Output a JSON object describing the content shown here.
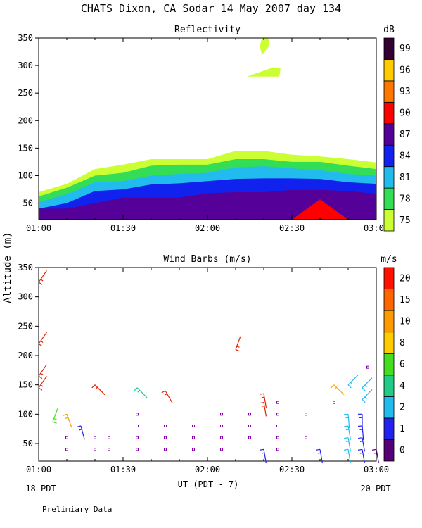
{
  "title": "CHATS Dixon, CA  Sodar  14 May 2007  day 134",
  "footer": {
    "left_start": "18 PDT",
    "right_end": "20 PDT",
    "note": "Prelimiary Data"
  },
  "chart_data": [
    {
      "type": "heatmap",
      "title": "Reflectivity",
      "ylabel": "Altitude (m)",
      "xlabel": "UT  (PDT - 7)",
      "x_domain": [
        "01:00",
        "03:00"
      ],
      "xticks": [
        "01:00",
        "01:30",
        "02:00",
        "02:30",
        "03:00"
      ],
      "ylim": [
        20,
        350
      ],
      "yticks": [
        50,
        100,
        150,
        200,
        250,
        300,
        350
      ],
      "colorbar": {
        "unit": "dB",
        "labels": [
          "75",
          "78",
          "81",
          "84",
          "87",
          "90",
          "93",
          "96",
          "99"
        ],
        "colors": [
          "#ccff33",
          "#33dd55",
          "#22bbee",
          "#1122ee",
          "#550099",
          "#ff0000",
          "#ff7700",
          "#ffcc00",
          "#330033"
        ]
      },
      "times": [
        "01:00",
        "01:10",
        "01:20",
        "01:30",
        "01:40",
        "01:50",
        "02:00",
        "02:10",
        "02:20",
        "02:30",
        "02:40",
        "02:50",
        "03:00"
      ],
      "layers": [
        {
          "level": "75",
          "color": "#ccff33",
          "top": [
            70,
            85,
            112,
            120,
            130,
            130,
            130,
            145,
            145,
            138,
            135,
            130,
            124
          ]
        },
        {
          "level": "78",
          "color": "#33dd55",
          "top": [
            62,
            78,
            100,
            105,
            118,
            120,
            120,
            130,
            130,
            125,
            125,
            118,
            112
          ]
        },
        {
          "level": "81",
          "color": "#22bbee",
          "top": [
            52,
            66,
            88,
            90,
            100,
            103,
            105,
            115,
            117,
            113,
            110,
            103,
            100
          ]
        },
        {
          "level": "84",
          "color": "#1122ee",
          "top": [
            40,
            50,
            72,
            75,
            84,
            86,
            90,
            94,
            95,
            95,
            94,
            88,
            85
          ]
        },
        {
          "level": "87",
          "color": "#550099",
          "top": [
            40,
            40,
            50,
            60,
            60,
            60,
            68,
            70,
            70,
            74,
            74,
            72,
            67
          ]
        }
      ],
      "patches": [
        {
          "level": "90",
          "color": "#ff0000",
          "shape": "peak",
          "time_range": [
            "02:30",
            "02:50"
          ],
          "peak_time": "02:40",
          "peak_alt": 57
        },
        {
          "level": "75",
          "color": "#ccff33",
          "shape": "plume",
          "time": "02:20",
          "alt_range": [
            320,
            350
          ]
        },
        {
          "level": "75",
          "color": "#ccff33",
          "shape": "wedge",
          "time_range": [
            "02:14",
            "02:26"
          ],
          "alt_range": [
            280,
            297
          ]
        }
      ]
    },
    {
      "type": "scatter",
      "title": "Wind Barbs (m/s)",
      "ylabel": "Altitude (m)",
      "xlabel": "UT  (PDT - 7)",
      "x_domain": [
        "01:00",
        "03:00"
      ],
      "xticks": [
        "01:00",
        "01:30",
        "02:00",
        "02:30",
        "03:00"
      ],
      "ylim": [
        20,
        350
      ],
      "yticks": [
        50,
        100,
        150,
        200,
        250,
        300,
        350
      ],
      "colorbar": {
        "unit": "m/s",
        "labels": [
          "0",
          "1",
          "2",
          "4",
          "6",
          "8",
          "10",
          "15",
          "20"
        ],
        "colors": [
          "#550077",
          "#2222ee",
          "#22bbee",
          "#22cc88",
          "#44dd22",
          "#ffcc00",
          "#ff9900",
          "#ff6600",
          "#ff1100"
        ]
      },
      "barbs": [
        {
          "time": "01:00",
          "alt": 325,
          "color": "#dd2200",
          "angle": 55
        },
        {
          "time": "01:00",
          "alt": 220,
          "color": "#dd2200",
          "angle": 55
        },
        {
          "time": "01:00",
          "alt": 165,
          "color": "#dd2200",
          "angle": 55
        },
        {
          "time": "01:00",
          "alt": 145,
          "color": "#dd2200",
          "angle": 55
        },
        {
          "time": "01:20",
          "alt": 150,
          "color": "#dd2200",
          "angle": -45
        },
        {
          "time": "01:35",
          "alt": 145,
          "color": "#22cc88",
          "angle": -45
        },
        {
          "time": "01:45",
          "alt": 140,
          "color": "#dd2200",
          "angle": -60
        },
        {
          "time": "02:10",
          "alt": 210,
          "color": "#dd2200",
          "angle": 70
        },
        {
          "time": "02:20",
          "alt": 135,
          "color": "#dd2200",
          "angle": -80
        },
        {
          "time": "02:20",
          "alt": 120,
          "color": "#dd2200",
          "angle": -80
        },
        {
          "time": "02:45",
          "alt": 150,
          "color": "#ffaa00",
          "angle": -45
        },
        {
          "time": "01:10",
          "alt": 100,
          "color": "#ff9900",
          "angle": -70
        },
        {
          "time": "01:05",
          "alt": 87,
          "color": "#44dd22",
          "angle": 70
        },
        {
          "time": "01:15",
          "alt": 80,
          "color": "#2222ee",
          "angle": -75
        },
        {
          "time": "02:50",
          "alt": 150,
          "color": "#22bbee",
          "angle": 45
        },
        {
          "time": "02:55",
          "alt": 145,
          "color": "#22bbee",
          "angle": 45
        },
        {
          "time": "02:55",
          "alt": 125,
          "color": "#22bbee",
          "angle": 45
        },
        {
          "time": "02:50",
          "alt": 100,
          "color": "#22bbee",
          "angle": -85
        },
        {
          "time": "02:55",
          "alt": 100,
          "color": "#2222ee",
          "angle": -90
        },
        {
          "time": "02:50",
          "alt": 80,
          "color": "#22bbee",
          "angle": -80
        },
        {
          "time": "02:55",
          "alt": 80,
          "color": "#2222ee",
          "angle": -85
        },
        {
          "time": "02:50",
          "alt": 60,
          "color": "#22bbee",
          "angle": -80
        },
        {
          "time": "02:55",
          "alt": 60,
          "color": "#2222ee",
          "angle": -80
        },
        {
          "time": "02:50",
          "alt": 40,
          "color": "#22bbee",
          "angle": -80
        },
        {
          "time": "02:55",
          "alt": 40,
          "color": "#2222ee",
          "angle": -80
        },
        {
          "time": "02:20",
          "alt": 40,
          "color": "#2222ee",
          "angle": -80
        },
        {
          "time": "02:40",
          "alt": 40,
          "color": "#2222ee",
          "angle": -80
        },
        {
          "time": "03:00",
          "alt": 40,
          "color": "#550077",
          "angle": -80
        }
      ],
      "calm": [
        {
          "time": "01:10",
          "alt": 40
        },
        {
          "time": "01:10",
          "alt": 60
        },
        {
          "time": "01:20",
          "alt": 40
        },
        {
          "time": "01:20",
          "alt": 60
        },
        {
          "time": "01:25",
          "alt": 80
        },
        {
          "time": "01:25",
          "alt": 60
        },
        {
          "time": "01:25",
          "alt": 40
        },
        {
          "time": "01:35",
          "alt": 100
        },
        {
          "time": "01:35",
          "alt": 80
        },
        {
          "time": "01:35",
          "alt": 60
        },
        {
          "time": "01:35",
          "alt": 40
        },
        {
          "time": "01:45",
          "alt": 80
        },
        {
          "time": "01:45",
          "alt": 60
        },
        {
          "time": "01:45",
          "alt": 40
        },
        {
          "time": "01:55",
          "alt": 80
        },
        {
          "time": "01:55",
          "alt": 60
        },
        {
          "time": "01:55",
          "alt": 40
        },
        {
          "time": "02:05",
          "alt": 100
        },
        {
          "time": "02:05",
          "alt": 80
        },
        {
          "time": "02:05",
          "alt": 60
        },
        {
          "time": "02:05",
          "alt": 40
        },
        {
          "time": "02:15",
          "alt": 100
        },
        {
          "time": "02:15",
          "alt": 80
        },
        {
          "time": "02:15",
          "alt": 60
        },
        {
          "time": "02:25",
          "alt": 120
        },
        {
          "time": "02:25",
          "alt": 100
        },
        {
          "time": "02:25",
          "alt": 80
        },
        {
          "time": "02:25",
          "alt": 60
        },
        {
          "time": "02:25",
          "alt": 40
        },
        {
          "time": "02:35",
          "alt": 100
        },
        {
          "time": "02:35",
          "alt": 80
        },
        {
          "time": "02:35",
          "alt": 60
        },
        {
          "time": "02:45",
          "alt": 120
        },
        {
          "time": "02:57",
          "alt": 180
        }
      ]
    }
  ]
}
